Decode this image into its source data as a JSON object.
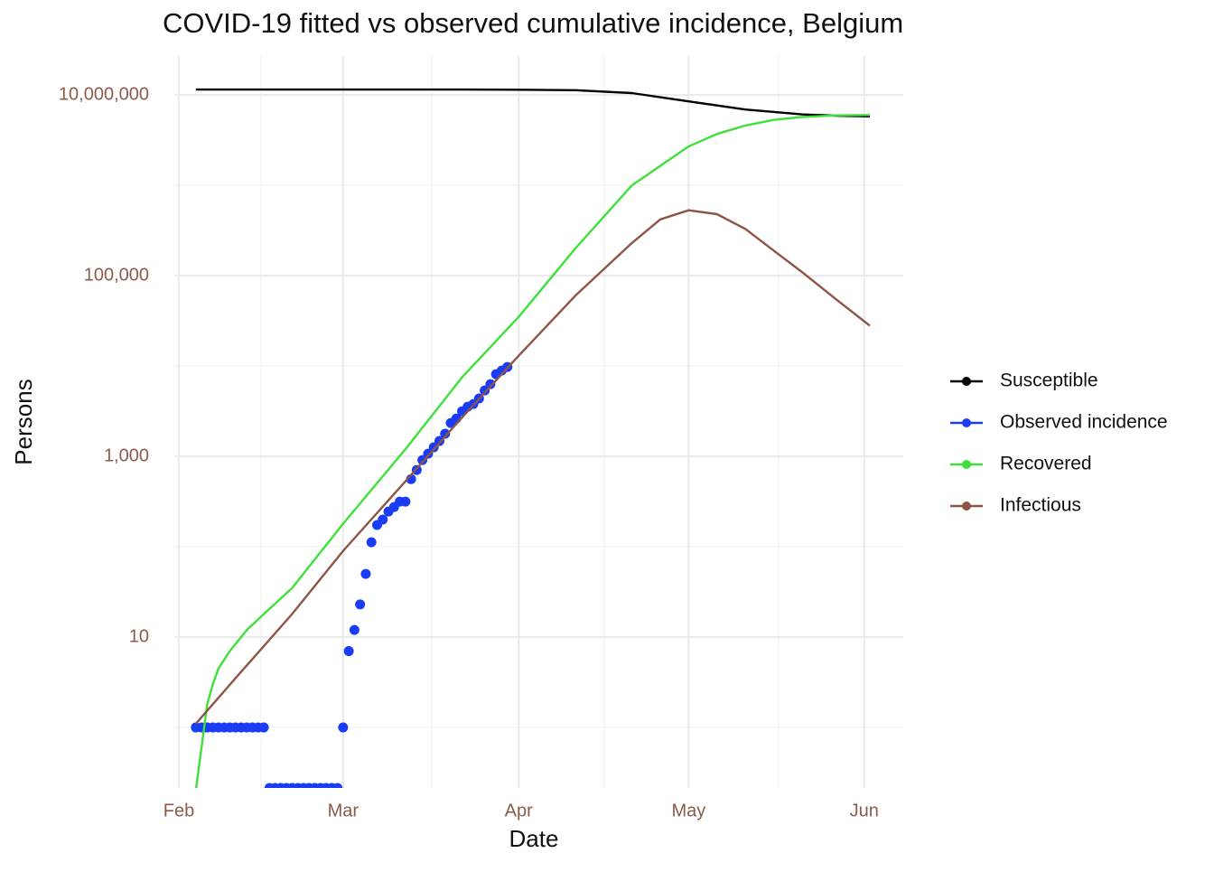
{
  "chart_data": {
    "type": "line",
    "title": "COVID-19 fitted vs observed cumulative incidence, Belgium",
    "x_label": "Date",
    "y_label": "Persons",
    "log_y": true,
    "grid": true,
    "legend": "right",
    "xlim": [
      -0.8,
      127.9
    ],
    "xticks": [
      {
        "value": 0,
        "label": "Feb"
      },
      {
        "value": 29,
        "label": "Mar"
      },
      {
        "value": 60,
        "label": "Apr"
      },
      {
        "value": 90,
        "label": "May"
      },
      {
        "value": 121,
        "label": "Jun"
      }
    ],
    "xminor": [
      14.5,
      44.7,
      75.1,
      105.9
    ],
    "ylim": [
      0.214,
      27000000
    ],
    "yticks": [
      {
        "value": 10,
        "label": "10"
      },
      {
        "value": 1000,
        "label": "1,000"
      },
      {
        "value": 100000,
        "label": "100,000"
      },
      {
        "value": 10000000,
        "label": "10,000,000"
      }
    ],
    "yminor": [
      1,
      100,
      10000,
      1000000
    ],
    "series": [
      {
        "name": "Susceptible",
        "color": "#000000",
        "style": "line",
        "x": [
          3,
          30,
          50,
          60,
          70,
          80,
          90,
          100,
          110,
          116,
          122
        ],
        "values": [
          11500000,
          11500000,
          11480000,
          11450000,
          11300000,
          10500000,
          8500000,
          6900000,
          6100000,
          5900000,
          5800000
        ]
      },
      {
        "name": "Observed incidence",
        "color": "#1a3cf5",
        "style": "points",
        "x": [
          3,
          4,
          5,
          6,
          7,
          8,
          9,
          10,
          11,
          12,
          13,
          14,
          15,
          16,
          17,
          18,
          19,
          20,
          21,
          22,
          23,
          24,
          25,
          26,
          27,
          28,
          29,
          30,
          31,
          32,
          33,
          34,
          35,
          36,
          37,
          38,
          39,
          40,
          41,
          42,
          43,
          44,
          45,
          46,
          47,
          48,
          49,
          50,
          51,
          52,
          53,
          54,
          55,
          56,
          57,
          58
        ],
        "values": [
          1,
          1,
          1,
          1,
          1,
          1,
          1,
          1,
          1,
          1,
          1,
          1,
          1,
          0,
          0,
          0,
          0,
          0,
          0,
          0,
          0,
          0,
          0,
          0,
          0,
          0,
          1,
          7,
          12,
          23,
          50,
          112,
          174,
          200,
          245,
          275,
          316,
          316,
          560,
          708,
          912,
          1070,
          1260,
          1480,
          1780,
          2340,
          2630,
          3160,
          3550,
          3800,
          4370,
          5370,
          6300,
          8130,
          8900,
          9770
        ]
      },
      {
        "name": "Recovered",
        "color": "#3ee03a",
        "style": "line",
        "x": [
          3,
          4,
          5,
          6,
          7,
          9,
          12,
          15,
          20,
          29,
          40,
          50,
          60,
          70,
          80,
          90,
          95,
          100,
          105,
          110,
          116,
          122
        ],
        "values": [
          0.2,
          0.6,
          1.8,
          3,
          4.5,
          7,
          12,
          18,
          35,
          180,
          1200,
          7500,
          35000,
          200000,
          1000000,
          2700000,
          3700000,
          4600000,
          5300000,
          5700000,
          5950000,
          6000000
        ]
      },
      {
        "name": "Infectious",
        "color": "#8e5444",
        "style": "line",
        "x": [
          3,
          10,
          20,
          29,
          40,
          50,
          60,
          70,
          80,
          85,
          90,
          95,
          100,
          105,
          110,
          116,
          122
        ],
        "values": [
          1.1,
          3.5,
          18,
          90,
          530,
          2700,
          13000,
          60000,
          230000,
          420000,
          530000,
          480000,
          330000,
          190000,
          110000,
          55000,
          28000
        ]
      }
    ]
  }
}
